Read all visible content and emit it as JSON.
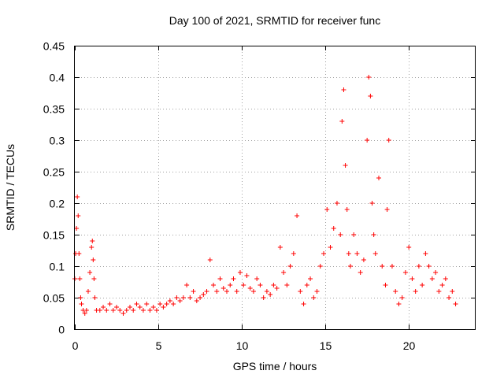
{
  "chart_data": {
    "type": "scatter",
    "title": "Day 100 of 2021, SRMTID for receiver func",
    "xlabel": "GPS time / hours",
    "ylabel": "SRMTID / TECUs",
    "xlim": [
      0,
      24
    ],
    "ylim": [
      0,
      0.45
    ],
    "x_ticks": [
      0,
      5,
      10,
      15,
      20
    ],
    "x_tick_labels": [
      "0",
      "5",
      "10",
      "15",
      "20"
    ],
    "y_ticks": [
      0,
      0.05,
      0.1,
      0.15,
      0.2,
      0.25,
      0.3,
      0.35,
      0.4,
      0.45
    ],
    "y_tick_labels": [
      "0",
      "0.05",
      "0.1",
      "0.15",
      "0.2",
      "0.25",
      "0.3",
      "0.35",
      "0.4",
      "0.45"
    ],
    "grid": true,
    "marker": "+",
    "color": "#ff0000",
    "series": [
      {
        "name": "SRMTID",
        "x": [
          0.0,
          0.05,
          0.1,
          0.15,
          0.2,
          0.25,
          0.3,
          0.35,
          0.4,
          0.5,
          0.6,
          0.7,
          0.8,
          0.9,
          1.0,
          1.05,
          1.1,
          1.15,
          1.2,
          1.3,
          1.5,
          1.7,
          1.9,
          2.1,
          2.3,
          2.5,
          2.7,
          2.9,
          3.1,
          3.3,
          3.5,
          3.7,
          3.9,
          4.1,
          4.3,
          4.5,
          4.7,
          4.9,
          5.1,
          5.3,
          5.5,
          5.7,
          5.9,
          6.1,
          6.3,
          6.5,
          6.7,
          6.9,
          7.1,
          7.3,
          7.5,
          7.7,
          7.9,
          8.1,
          8.3,
          8.5,
          8.7,
          8.9,
          9.1,
          9.3,
          9.5,
          9.7,
          9.9,
          10.1,
          10.3,
          10.5,
          10.7,
          10.9,
          11.1,
          11.3,
          11.5,
          11.7,
          11.9,
          12.1,
          12.3,
          12.5,
          12.7,
          12.9,
          13.1,
          13.3,
          13.5,
          13.7,
          13.9,
          14.1,
          14.3,
          14.5,
          14.7,
          14.9,
          15.1,
          15.3,
          15.5,
          15.7,
          15.9,
          16.0,
          16.1,
          16.2,
          16.3,
          16.4,
          16.5,
          16.7,
          16.9,
          17.1,
          17.3,
          17.5,
          17.6,
          17.7,
          17.8,
          17.9,
          18.0,
          18.2,
          18.4,
          18.6,
          18.7,
          18.8,
          19.0,
          19.2,
          19.4,
          19.6,
          19.8,
          20.0,
          20.2,
          20.4,
          20.6,
          20.8,
          21.0,
          21.2,
          21.4,
          21.6,
          21.8,
          22.0,
          22.2,
          22.4,
          22.6,
          22.8
        ],
        "y": [
          0.08,
          0.12,
          0.16,
          0.21,
          0.18,
          0.12,
          0.08,
          0.05,
          0.04,
          0.03,
          0.025,
          0.03,
          0.06,
          0.09,
          0.13,
          0.14,
          0.11,
          0.08,
          0.05,
          0.03,
          0.03,
          0.035,
          0.03,
          0.04,
          0.03,
          0.035,
          0.03,
          0.025,
          0.03,
          0.035,
          0.03,
          0.04,
          0.035,
          0.03,
          0.04,
          0.03,
          0.035,
          0.03,
          0.04,
          0.035,
          0.04,
          0.045,
          0.04,
          0.05,
          0.045,
          0.05,
          0.07,
          0.05,
          0.06,
          0.045,
          0.05,
          0.055,
          0.06,
          0.11,
          0.07,
          0.06,
          0.08,
          0.065,
          0.06,
          0.07,
          0.08,
          0.06,
          0.09,
          0.07,
          0.085,
          0.065,
          0.06,
          0.08,
          0.07,
          0.05,
          0.06,
          0.055,
          0.07,
          0.065,
          0.13,
          0.09,
          0.07,
          0.1,
          0.12,
          0.18,
          0.06,
          0.04,
          0.07,
          0.08,
          0.05,
          0.06,
          0.1,
          0.12,
          0.19,
          0.13,
          0.16,
          0.2,
          0.15,
          0.33,
          0.38,
          0.26,
          0.19,
          0.12,
          0.1,
          0.15,
          0.12,
          0.09,
          0.11,
          0.3,
          0.4,
          0.37,
          0.2,
          0.15,
          0.12,
          0.24,
          0.1,
          0.07,
          0.19,
          0.3,
          0.1,
          0.06,
          0.04,
          0.05,
          0.09,
          0.13,
          0.08,
          0.06,
          0.1,
          0.07,
          0.12,
          0.1,
          0.08,
          0.09,
          0.06,
          0.07,
          0.08,
          0.05,
          0.06,
          0.04
        ]
      }
    ]
  }
}
